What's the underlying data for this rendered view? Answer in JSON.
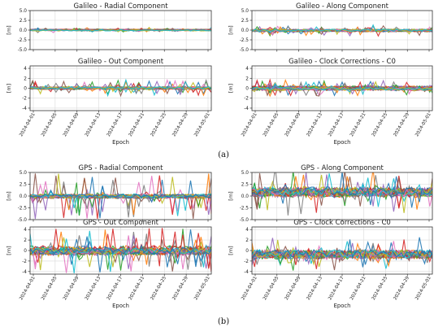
{
  "figure": {
    "caption_a": "(a)",
    "caption_b": "(b)",
    "xlabel": "Epoch",
    "ylabel": "[m]",
    "series_colors": [
      "#1f77b4",
      "#ff7f0e",
      "#2ca02c",
      "#d62728",
      "#9467bd",
      "#8c564b",
      "#e377c2",
      "#7f7f7f",
      "#bcbd22",
      "#17becf"
    ],
    "grid": true
  },
  "chart_data": [
    {
      "type": "line",
      "title": "Galileo - Radial Component",
      "xlabel": "",
      "ylabel": "[m]",
      "x_ticks": [],
      "yticks": [
        5.0,
        2.5,
        0.0,
        -2.5,
        -5.0
      ],
      "ylim": [
        -5.0,
        5.0
      ],
      "series_envelope": {
        "center": 0.0,
        "spread": 0.3,
        "spikes": 0.5
      },
      "series_count": 30
    },
    {
      "type": "line",
      "title": "Galileo - Along Component",
      "xlabel": "",
      "ylabel": "[m]",
      "x_ticks": [],
      "yticks": [
        5.0,
        2.5,
        0.0,
        -2.5,
        -5.0
      ],
      "ylim": [
        -5.0,
        5.0
      ],
      "series_envelope": {
        "center": 0.0,
        "spread": 0.6,
        "spikes": 1.2
      },
      "series_count": 30
    },
    {
      "type": "line",
      "title": "Galileo - Out Component",
      "xlabel": "Epoch",
      "ylabel": "[m]",
      "x_ticks": [
        "2024-04-01",
        "2024-04-05",
        "2024-04-09",
        "2024-04-13",
        "2024-04-17",
        "2024-04-21",
        "2024-04-25",
        "2024-04-29",
        "2024-05-01"
      ],
      "yticks": [
        4,
        2,
        0,
        -2,
        -4
      ],
      "ylim": [
        -4.5,
        4.5
      ],
      "series_envelope": {
        "center": 0.0,
        "spread": 0.5,
        "spikes": 1.5
      },
      "series_count": 30
    },
    {
      "type": "line",
      "title": "Galileo - Clock Corrections - C0",
      "xlabel": "Epoch",
      "ylabel": "[m]",
      "x_ticks": [
        "2024-04-01",
        "2024-04-05",
        "2024-04-09",
        "2024-04-13",
        "2024-04-17",
        "2024-04-21",
        "2024-04-25",
        "2024-04-29",
        "2024-05-01"
      ],
      "yticks": [
        4,
        2,
        0,
        -2,
        -4
      ],
      "ylim": [
        -4.5,
        4.5
      ],
      "series_envelope": {
        "center": 0.0,
        "spread": 0.6,
        "spikes": 1.5
      },
      "series_count": 30
    },
    {
      "type": "line",
      "title": "GPS - Radial Component",
      "xlabel": "",
      "ylabel": "[m]",
      "x_ticks": [],
      "yticks": [
        5.0,
        2.5,
        0.0,
        -2.5,
        -5.0
      ],
      "ylim": [
        -5.0,
        5.0
      ],
      "series_envelope": {
        "center": 0.0,
        "spread": 0.8,
        "spikes": 5.0
      },
      "series_count": 31
    },
    {
      "type": "line",
      "title": "GPS - Along Component",
      "xlabel": "",
      "ylabel": "[m]",
      "x_ticks": [],
      "yticks": [
        5.0,
        2.5,
        0.0,
        -2.5,
        -5.0
      ],
      "ylim": [
        -5.0,
        5.0
      ],
      "series_envelope": {
        "center": 0.5,
        "spread": 1.8,
        "spikes": 4.5
      },
      "series_count": 31
    },
    {
      "type": "line",
      "title": "GPS - Out Component",
      "xlabel": "Epoch",
      "ylabel": "[m]",
      "x_ticks": [
        "2024-04-01",
        "2024-04-05",
        "2024-04-09",
        "2024-04-13",
        "2024-04-17",
        "2024-04-21",
        "2024-04-25",
        "2024-04-29",
        "2024-05-01"
      ],
      "yticks": [
        4,
        2,
        0,
        -2,
        -4
      ],
      "ylim": [
        -4.5,
        4.5
      ],
      "series_envelope": {
        "center": 0.0,
        "spread": 1.2,
        "spikes": 4.0
      },
      "series_count": 31
    },
    {
      "type": "line",
      "title": "GPS - Clock Corrections - C0",
      "xlabel": "Epoch",
      "ylabel": "[m]",
      "x_ticks": [
        "2024-04-01",
        "2024-04-05",
        "2024-04-09",
        "2024-04-13",
        "2024-04-17",
        "2024-04-21",
        "2024-04-25",
        "2024-04-29",
        "2024-05-01"
      ],
      "yticks": [
        4,
        2,
        0,
        -2,
        -4
      ],
      "ylim": [
        -4.5,
        4.5
      ],
      "series_envelope": {
        "center": -0.8,
        "spread": 1.5,
        "spikes": 2.5
      },
      "series_count": 31
    }
  ]
}
